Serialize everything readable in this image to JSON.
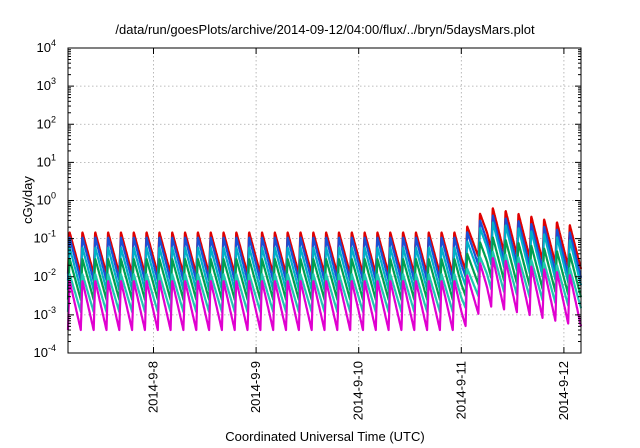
{
  "chart_data": {
    "type": "line",
    "title": "/data/run/goesPlots/archive/2014-09-12/04:00/flux/../bryn/5daysMars.plot",
    "xlabel": "Coordinated Universal Time (UTC)",
    "ylabel": "cGy/day",
    "y_scale": "log",
    "ylim": [
      0.0001,
      10000
    ],
    "y_ticks": [
      {
        "base": "10",
        "exp": "-4"
      },
      {
        "base": "10",
        "exp": "-3"
      },
      {
        "base": "10",
        "exp": "-2"
      },
      {
        "base": "10",
        "exp": "-1"
      },
      {
        "base": "10",
        "exp": "0"
      },
      {
        "base": "10",
        "exp": "1"
      },
      {
        "base": "10",
        "exp": "2"
      },
      {
        "base": "10",
        "exp": "3"
      },
      {
        "base": "10",
        "exp": "4"
      }
    ],
    "xlim": [
      "2014-09-07 04:00",
      "2014-09-12 04:00"
    ],
    "x_ticks": [
      "2014-9-8",
      "2014-9-9",
      "2014-9-10",
      "2014-9-11",
      "2014-9-12"
    ],
    "grid": true,
    "legend": "none",
    "series_style": "sawtooth",
    "cycles_per_day": 8,
    "cycle_phase_start": "2014-09-07 04:00",
    "event_start": "2014-09-11 00:00",
    "event_peak": "2014-09-11 06:00",
    "series": [
      {
        "color": "#e00000",
        "peak": 0.15,
        "trough": 0.012,
        "event_peak": 0.7,
        "event_end": 0.2
      },
      {
        "color": "#1a4fd6",
        "peak": 0.11,
        "trough": 0.008,
        "event_peak": 0.45,
        "event_end": 0.13
      },
      {
        "color": "#00b0c8",
        "peak": 0.06,
        "trough": 0.0045,
        "event_peak": 0.3,
        "event_end": 0.08
      },
      {
        "color": "#00a050",
        "peak": 0.03,
        "trough": 0.0025,
        "event_peak": 0.12,
        "event_end": 0.035
      },
      {
        "color": "#20c8b0",
        "peak": 0.012,
        "trough": 0.0012,
        "event_peak": 0.05,
        "event_end": 0.015
      },
      {
        "color": "#e000d0",
        "peak": 0.008,
        "trough": 0.0004,
        "event_peak": 0.035,
        "event_end": 0.01
      }
    ]
  }
}
